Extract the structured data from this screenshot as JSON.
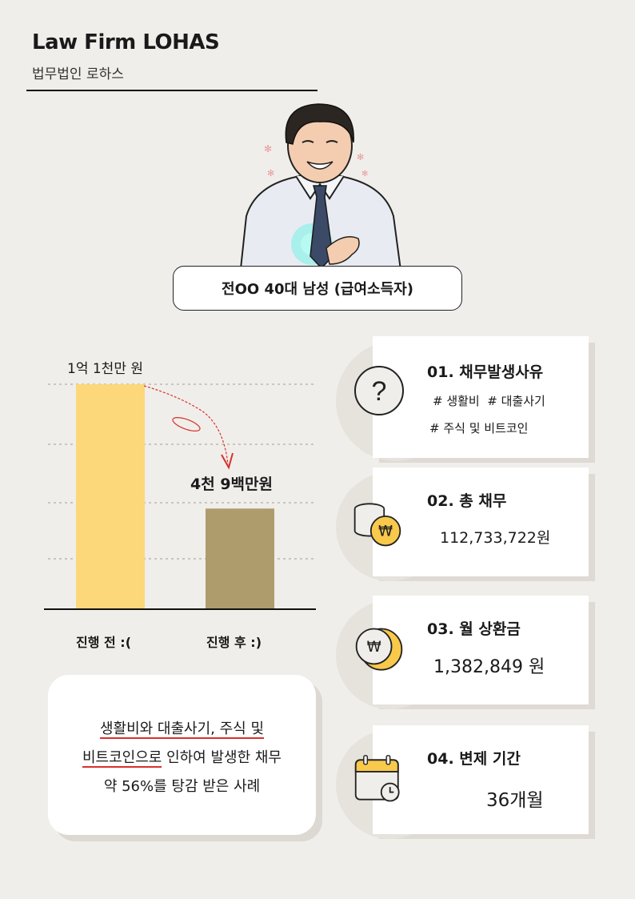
{
  "header": {
    "firm_name": "Law Firm LOHAS",
    "firm_name_ko": "법무법인 로하스"
  },
  "subject": "전OO 40대 남성 (급여소득자)",
  "chart_data": {
    "type": "bar",
    "categories": [
      "진행 전 :(",
      "진행 후 :)"
    ],
    "values": [
      110000000,
      49000000
    ],
    "data_labels": [
      "1억 1천만 원",
      "4천 9백만원"
    ],
    "colors": [
      "#fcd87a",
      "#ae9c6c"
    ],
    "grid": true
  },
  "summary": {
    "line1_a": "생활비와 대출사기, 주식 및",
    "line2_a": "비트코인으로",
    "line2_b": " 인하여 발생한 채무",
    "line3": "약 56%를 탕감 받은 사례"
  },
  "cards": [
    {
      "title": "01. 채무발생사유",
      "tags": [
        "# 생활비  # 대출사기",
        "# 주식 및 비트코인"
      ],
      "icon": "question-icon"
    },
    {
      "title": "02. 총 채무",
      "value": "112,733,722원",
      "icon": "coins-won-icon"
    },
    {
      "title": "03. 월 상환금",
      "value": "1,382,849 원",
      "icon": "moon-coin-won-icon"
    },
    {
      "title": "04. 변제 기간",
      "value": "36개월",
      "icon": "calendar-clock-icon"
    }
  ],
  "colors": {
    "background": "#f0eeea",
    "bar_before": "#fcd87a",
    "bar_after": "#ae9c6c",
    "accent_red": "#d9302b",
    "coin_gold": "#f8c94a"
  }
}
